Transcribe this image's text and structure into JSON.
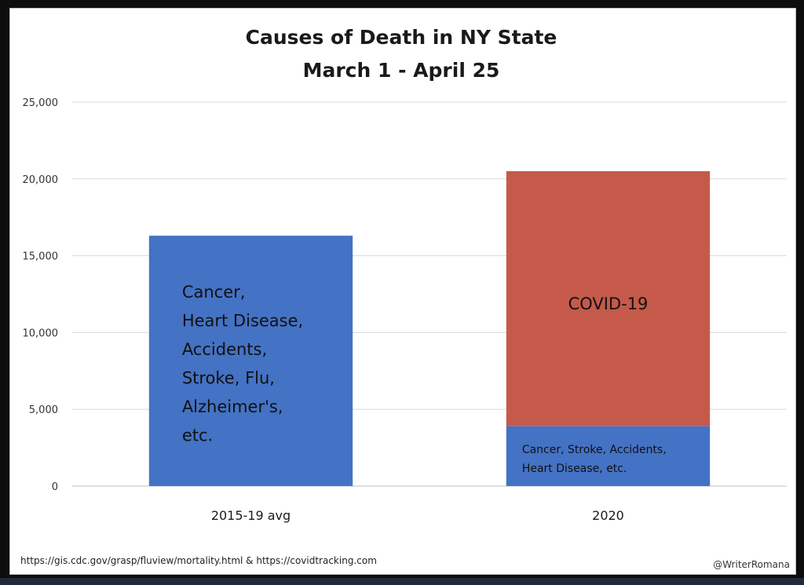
{
  "chart_data": {
    "type": "bar",
    "stacked": true,
    "title": "Causes of Death in NY State",
    "subtitle": "March 1 - April 25",
    "xlabel": "",
    "ylabel": "",
    "ylim": [
      0,
      25000
    ],
    "yticks": [
      0,
      5000,
      10000,
      15000,
      20000,
      25000
    ],
    "ytick_labels": [
      "0",
      "5,000",
      "10,000",
      "15,000",
      "20,000",
      "25,000"
    ],
    "grid": true,
    "categories": [
      "2015-19 avg",
      "2020"
    ],
    "series": [
      {
        "values": [
          16300,
          3900
        ],
        "color": "#4472c4"
      },
      {
        "values": [
          0,
          16600
        ],
        "color": "#c55a4a"
      }
    ],
    "bar_labels": [
      {
        "category": "2015-19 avg",
        "lines": [
          "Cancer,",
          "Heart Disease,",
          "Accidents,",
          "Stroke, Flu,",
          "Alzheimer's,",
          "etc."
        ]
      },
      {
        "category": "2020",
        "lines": [
          "COVID-19"
        ]
      },
      {
        "category": "2020",
        "lines": [
          "Cancer, Stroke, Accidents,",
          "Heart Disease, etc."
        ]
      }
    ],
    "source": "https://gis.cdc.gov/grasp/fluview/mortality.html  & https://covidtracking.com",
    "credit": "@WriterRomana"
  },
  "colors": {
    "gridline": "#d9d9d9",
    "axis": "#bfbfbf"
  }
}
